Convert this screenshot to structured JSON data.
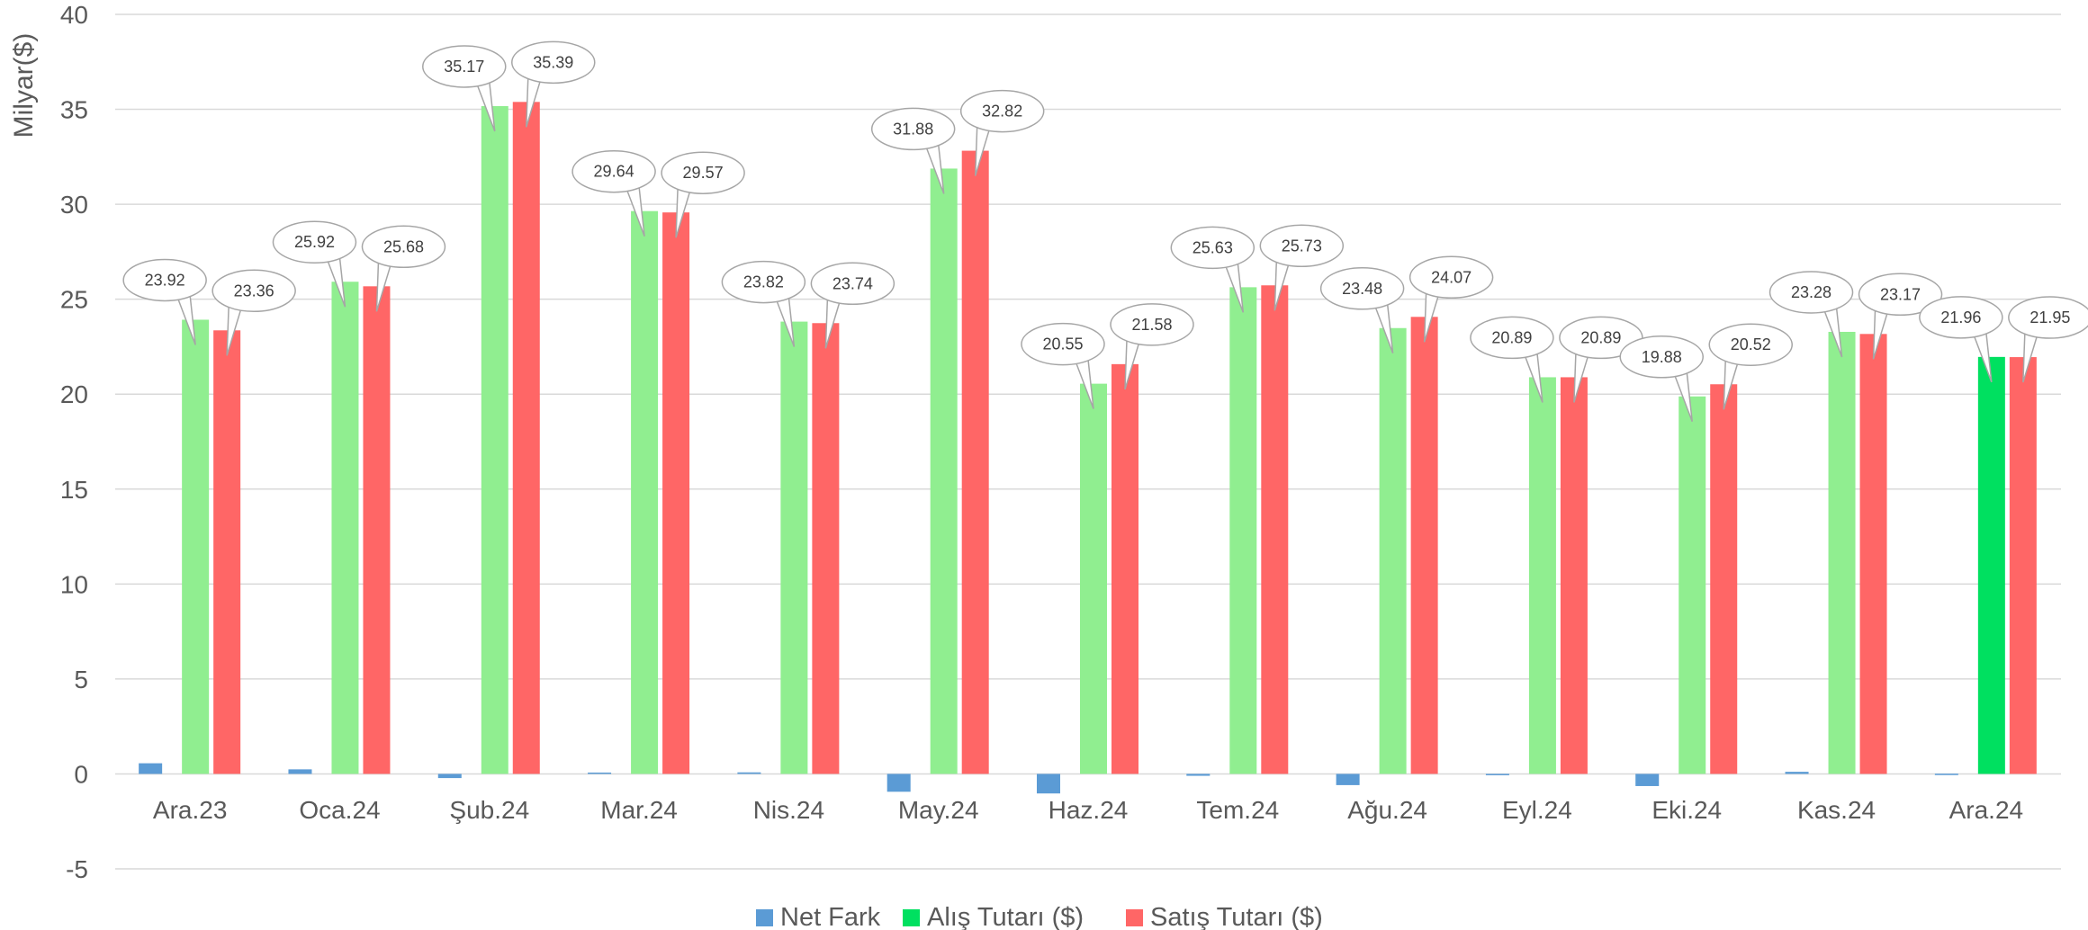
{
  "chart_data": {
    "type": "bar",
    "title": "",
    "xlabel": "",
    "ylabel": "Milyar($)",
    "ylim": [
      -5,
      40
    ],
    "yticks": [
      -5,
      0,
      5,
      10,
      15,
      20,
      25,
      30,
      35,
      40
    ],
    "grid": true,
    "legend_position": "bottom",
    "categories": [
      "Ara.23",
      "Oca.24",
      "Şub.24",
      "Mar.24",
      "Nis.24",
      "May.24",
      "Haz.24",
      "Tem.24",
      "Ağu.24",
      "Eyl.24",
      "Eki.24",
      "Kas.24",
      "Ara.24"
    ],
    "series": [
      {
        "name": "Net Fark",
        "color": "#5B9BD5",
        "values": [
          0.56,
          0.24,
          -0.22,
          0.07,
          0.08,
          -0.94,
          -1.03,
          -0.1,
          -0.59,
          0.0,
          -0.64,
          0.11,
          0.01
        ],
        "labeled": false
      },
      {
        "name": "Alış Tutarı ($)",
        "color": "#90EE90",
        "last_color": "#00E060",
        "values": [
          23.92,
          25.92,
          35.17,
          29.64,
          23.82,
          31.88,
          20.55,
          25.63,
          23.48,
          20.89,
          19.88,
          23.28,
          21.96
        ],
        "labeled": true
      },
      {
        "name": "Satış Tutarı ($)",
        "color": "#FF6666",
        "values": [
          23.36,
          25.68,
          35.39,
          29.57,
          23.74,
          32.82,
          21.58,
          25.73,
          24.07,
          20.89,
          20.52,
          23.17,
          21.95
        ],
        "labeled": true
      }
    ],
    "legend_colors": [
      "#5B9BD5",
      "#00E060",
      "#FF6666"
    ]
  }
}
